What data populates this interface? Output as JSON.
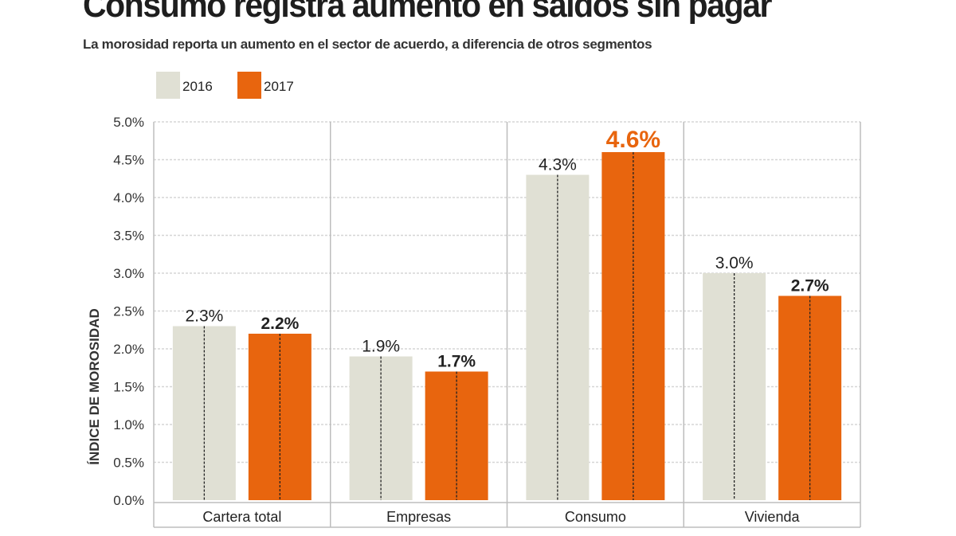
{
  "chart_data": {
    "type": "bar",
    "title": "Consumo registra aumento en saldos sin pagar",
    "subtitle": "La morosidad reporta un aumento en el sector de acuerdo, a diferencia de otros segmentos",
    "xlabel": "",
    "ylabel": "ÍNDICE DE MOROSIDAD",
    "ylim": [
      0,
      5
    ],
    "yticks": [
      "0.0%",
      "0.5%",
      "1.0%",
      "1.5%",
      "2.0%",
      "2.5%",
      "3.0%",
      "3.5%",
      "4.0%",
      "4.5%",
      "5.0%"
    ],
    "grid": true,
    "legend_position": "top-left",
    "categories": [
      "Cartera total",
      "Empresas",
      "Consumo",
      "Vivienda"
    ],
    "series": [
      {
        "name": "2016",
        "color": "#e0e0d4",
        "values": [
          2.3,
          1.9,
          4.3,
          3.0
        ],
        "labels": [
          "2.3%",
          "1.9%",
          "4.3%",
          "3.0%"
        ]
      },
      {
        "name": "2017",
        "color": "#e8650e",
        "values": [
          2.2,
          1.7,
          4.6,
          2.7
        ],
        "labels": [
          "2.2%",
          "1.7%",
          "4.6%",
          "2.7%"
        ]
      }
    ],
    "highlight": {
      "category": "Consumo",
      "series": "2017",
      "color": "#e8650e"
    }
  }
}
